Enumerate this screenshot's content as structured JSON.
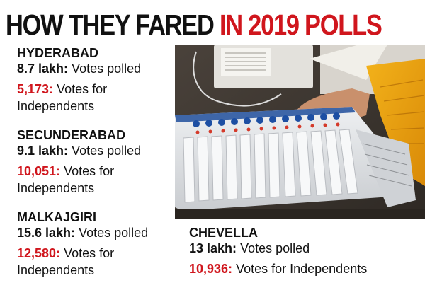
{
  "headline": {
    "part1": "HOW THEY FARED",
    "part2": "IN 2019 POLLS"
  },
  "constituencies": [
    {
      "name": "HYDERABAD",
      "votes_polled": "8.7 lakh:",
      "votes_polled_label": "Votes polled",
      "independents": "5,173:",
      "independents_label_1": "Votes for",
      "independents_label_2": "Independents"
    },
    {
      "name": "SECUNDERABAD",
      "votes_polled": "9.1 lakh:",
      "votes_polled_label": "Votes polled",
      "independents": "10,051:",
      "independents_label_1": "Votes for",
      "independents_label_2": "Independents"
    },
    {
      "name": "MALKAJGIRI",
      "votes_polled": "15.6 lakh:",
      "votes_polled_label": "Votes polled",
      "independents": "12,580:",
      "independents_label_1": "Votes for",
      "independents_label_2": "Independents"
    },
    {
      "name": "CHEVELLA",
      "votes_polled": "13 lakh:",
      "votes_polled_label": "Votes polled",
      "independents": "10,936:",
      "independents_label": "Votes for Independents"
    }
  ],
  "colors": {
    "accent_red": "#d0161d",
    "text": "#111111",
    "background": "#ffffff"
  },
  "photo": {
    "icon": "evm-photo"
  }
}
